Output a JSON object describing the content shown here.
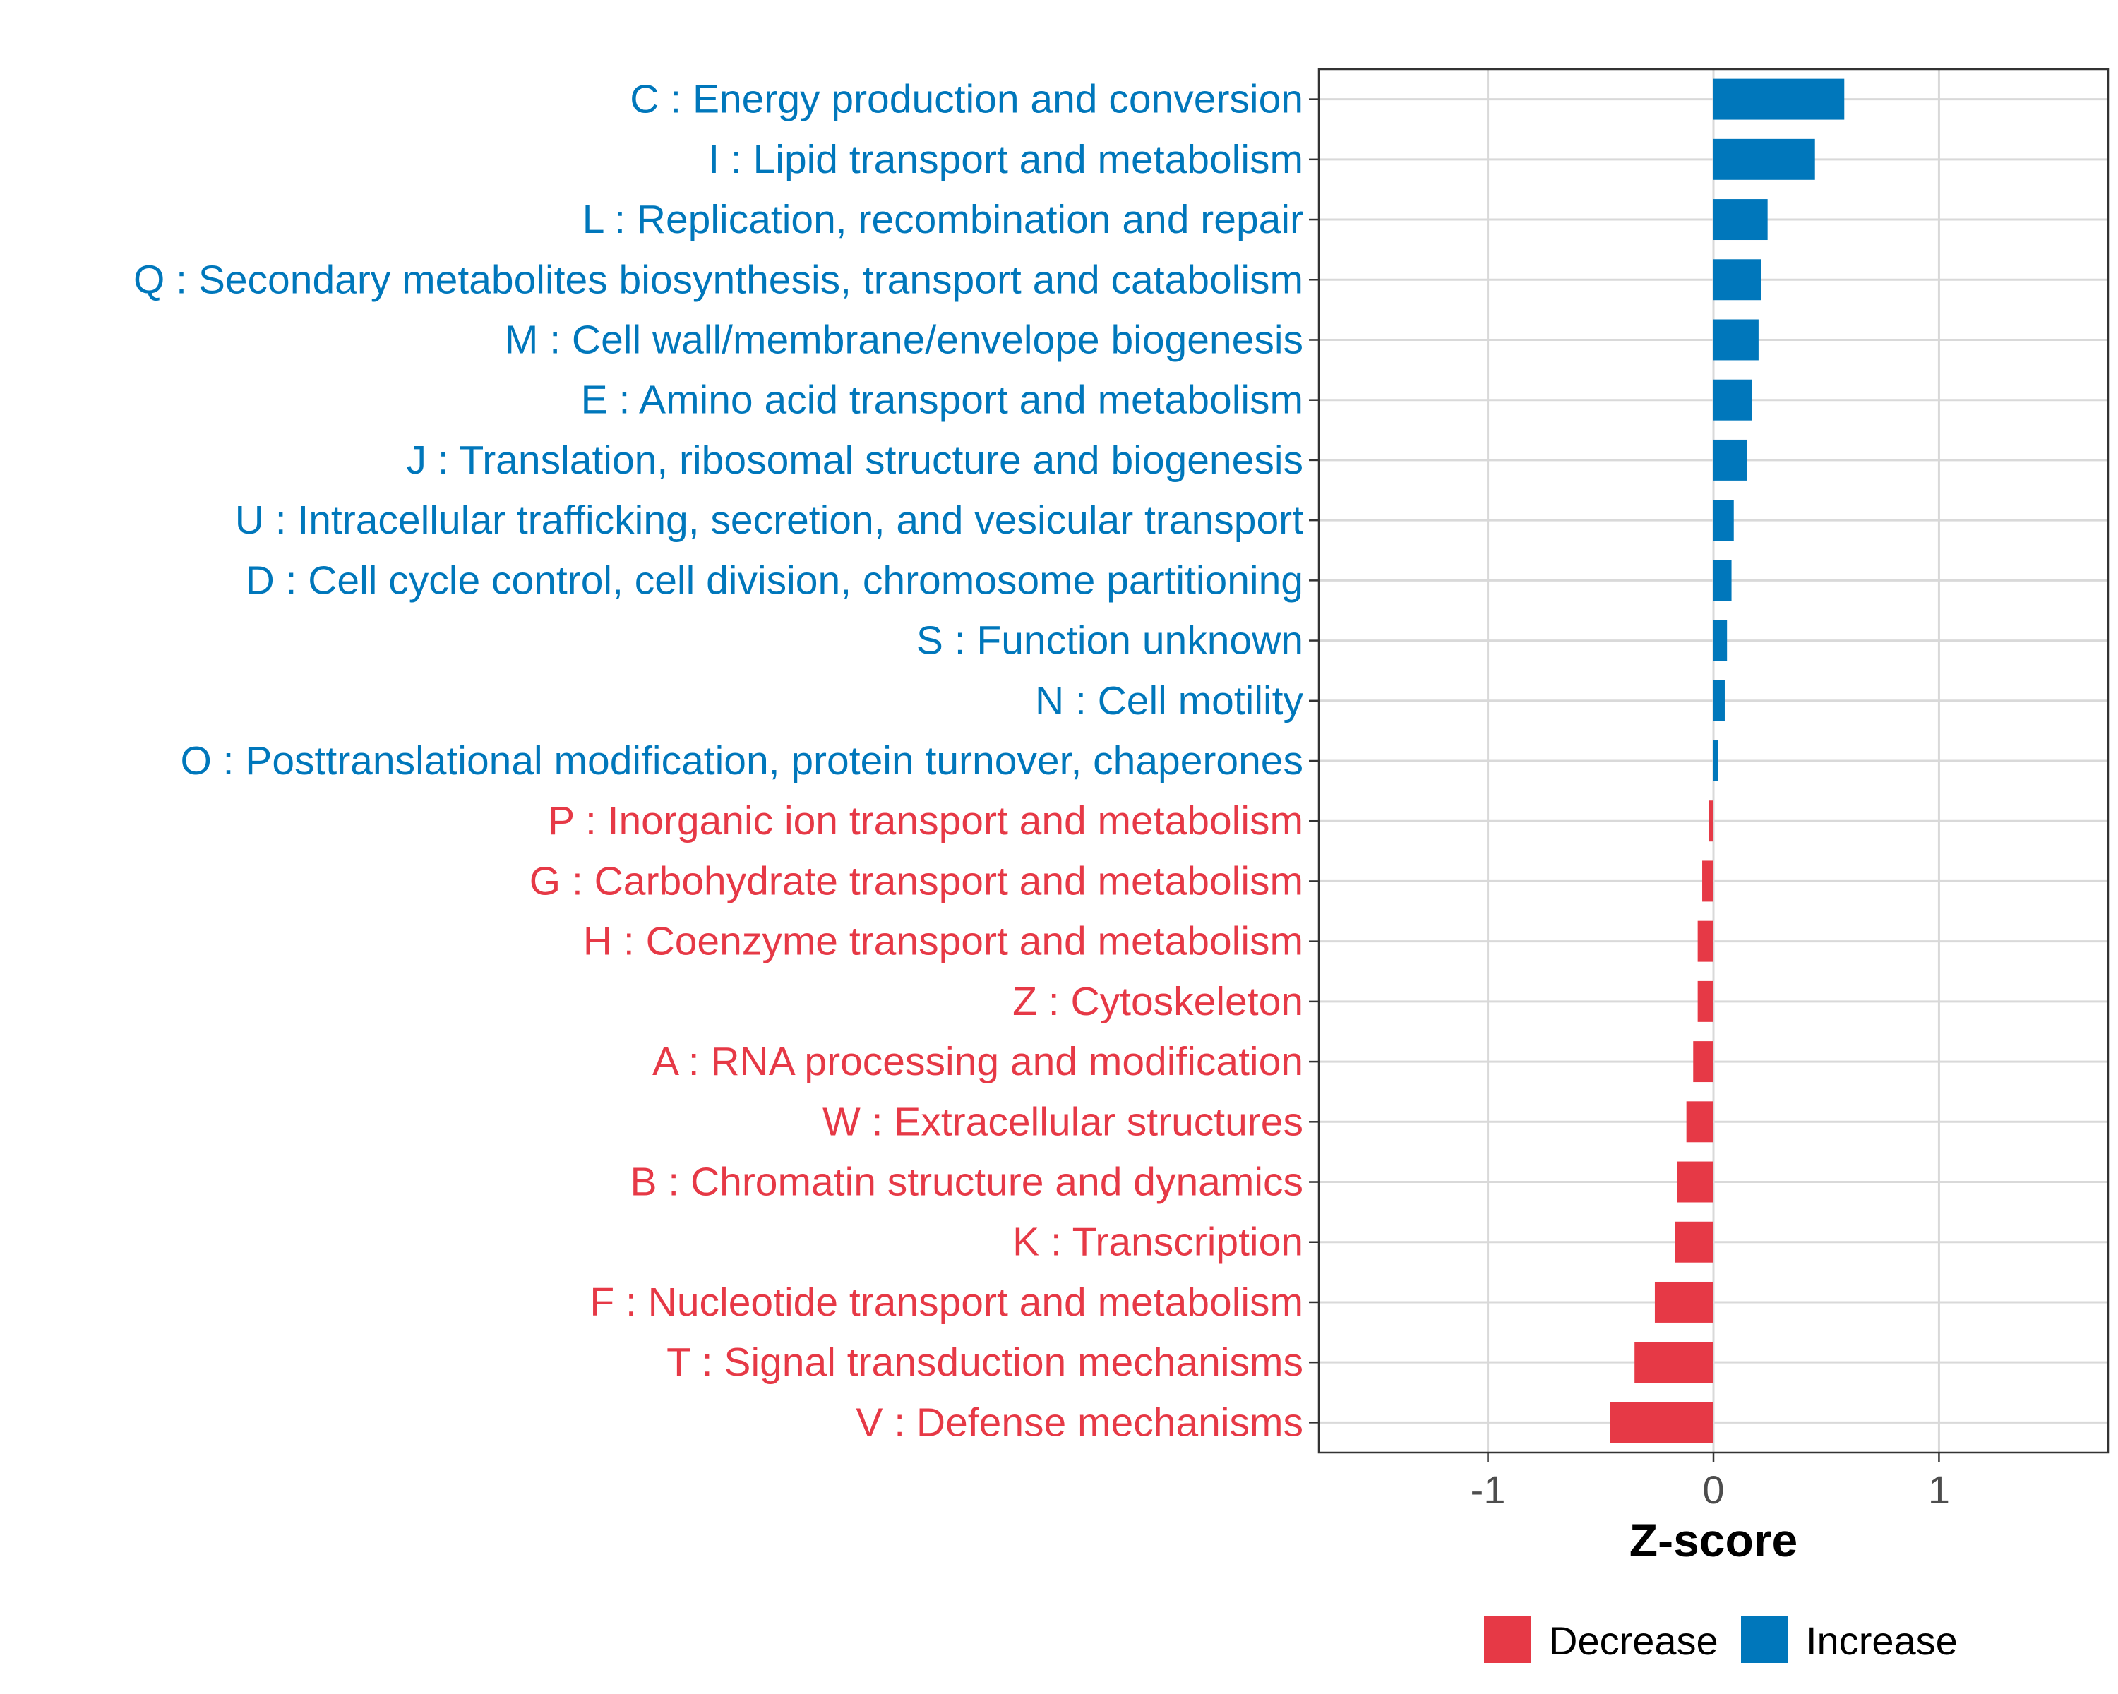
{
  "chart_data": {
    "type": "bar",
    "orientation": "horizontal",
    "xlabel": "Z-score",
    "xlim": [
      -1.75,
      1.75
    ],
    "xticks": [
      -1,
      0,
      1
    ],
    "xtick_labels": [
      "-1",
      "0",
      "1"
    ],
    "grid": true,
    "legend_position": "bottom",
    "legend": [
      {
        "name": "Decrease",
        "color": "#E63946"
      },
      {
        "name": "Increase",
        "color": "#0077BB"
      }
    ],
    "categories": [
      "C : Energy production and conversion",
      "I : Lipid transport and metabolism",
      "L : Replication, recombination and repair",
      "Q : Secondary metabolites biosynthesis, transport and catabolism",
      "M : Cell wall/membrane/envelope biogenesis",
      "E : Amino acid transport and metabolism",
      "J : Translation, ribosomal structure and biogenesis",
      "U : Intracellular trafficking, secretion, and vesicular transport",
      "D : Cell cycle control, cell division, chromosome partitioning",
      "S : Function unknown",
      "N : Cell motility",
      "O : Posttranslational modification, protein turnover, chaperones",
      "P : Inorganic ion transport and metabolism",
      "G : Carbohydrate transport and metabolism",
      "H : Coenzyme transport and metabolism",
      "Z : Cytoskeleton",
      "A : RNA processing and modification",
      "W : Extracellular structures",
      "B : Chromatin structure and dynamics",
      "K : Transcription",
      "F : Nucleotide transport and metabolism",
      "T : Signal transduction mechanisms",
      "V : Defense mechanisms"
    ],
    "values": [
      0.58,
      0.45,
      0.24,
      0.21,
      0.2,
      0.17,
      0.15,
      0.09,
      0.08,
      0.06,
      0.05,
      0.02,
      -0.02,
      -0.05,
      -0.07,
      -0.07,
      -0.09,
      -0.12,
      -0.16,
      -0.17,
      -0.26,
      -0.35,
      -0.46
    ],
    "groups": [
      "Increase",
      "Increase",
      "Increase",
      "Increase",
      "Increase",
      "Increase",
      "Increase",
      "Increase",
      "Increase",
      "Increase",
      "Increase",
      "Increase",
      "Decrease",
      "Decrease",
      "Decrease",
      "Decrease",
      "Decrease",
      "Decrease",
      "Decrease",
      "Decrease",
      "Decrease",
      "Decrease",
      "Decrease"
    ]
  }
}
